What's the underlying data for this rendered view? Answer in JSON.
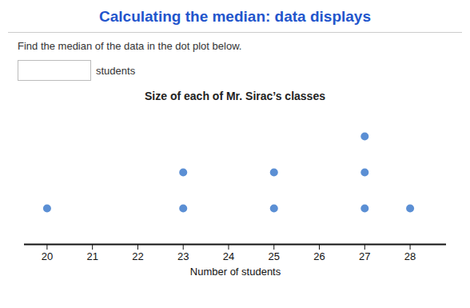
{
  "chart_data": {
    "type": "dot_plot",
    "title": "Calculating the median: data displays",
    "subtitle": "Size of each of Mr. Sirac’s classes",
    "annotations": [
      "Find the median of the data in the dot plot below.",
      "students"
    ],
    "xlabel": "Number of students",
    "x": [
      20,
      23,
      25,
      27,
      28
    ],
    "values": [
      1,
      2,
      2,
      3,
      1
    ],
    "color": "#5b8fd4",
    "xlim": [
      19.5,
      28.8
    ],
    "xticks": [
      20,
      21,
      22,
      23,
      24,
      25,
      26,
      27,
      28
    ],
    "tick_labels": "x"
  }
}
